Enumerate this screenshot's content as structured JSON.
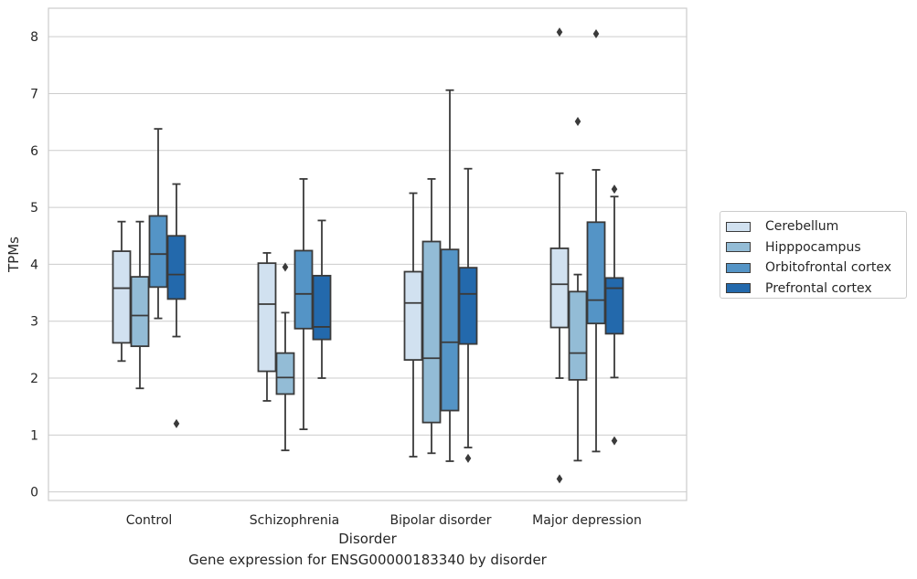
{
  "chart_data": {
    "type": "box",
    "title": "",
    "caption": "Gene expression for ENSG00000183340 by disorder",
    "xlabel": "Disorder",
    "ylabel": "TPMs",
    "ylim": [
      -0.15,
      8.5
    ],
    "yticks": [
      0,
      1,
      2,
      3,
      4,
      5,
      6,
      7,
      8
    ],
    "grid": "horizontal",
    "legend_position": "right",
    "categories": [
      "Control",
      "Schizophrenia",
      "Bipolar disorder",
      "Major depression"
    ],
    "series": [
      {
        "name": "Cerebellum",
        "color": "#d1e1f0",
        "boxes": [
          {
            "whislo": 2.3,
            "q1": 2.62,
            "med": 3.58,
            "q3": 4.23,
            "whishi": 4.75,
            "fliers": []
          },
          {
            "whislo": 1.6,
            "q1": 2.12,
            "med": 3.3,
            "q3": 4.02,
            "whishi": 4.2,
            "fliers": []
          },
          {
            "whislo": 0.62,
            "q1": 2.32,
            "med": 3.32,
            "q3": 3.87,
            "whishi": 5.25,
            "fliers": []
          },
          {
            "whislo": 2.0,
            "q1": 2.89,
            "med": 3.65,
            "q3": 4.28,
            "whishi": 5.6,
            "fliers": [
              8.08,
              0.23
            ]
          }
        ]
      },
      {
        "name": "Hipppocampus",
        "color": "#93bcd6",
        "boxes": [
          {
            "whislo": 1.82,
            "q1": 2.56,
            "med": 3.1,
            "q3": 3.78,
            "whishi": 4.75,
            "fliers": []
          },
          {
            "whislo": 0.73,
            "q1": 1.72,
            "med": 2.01,
            "q3": 2.44,
            "whishi": 3.15,
            "fliers": [
              3.95
            ]
          },
          {
            "whislo": 0.68,
            "q1": 1.22,
            "med": 2.35,
            "q3": 4.4,
            "whishi": 5.5,
            "fliers": []
          },
          {
            "whislo": 0.55,
            "q1": 1.97,
            "med": 2.44,
            "q3": 3.52,
            "whishi": 3.82,
            "fliers": [
              6.51
            ]
          }
        ]
      },
      {
        "name": "Orbitofrontal cortex",
        "color": "#5494c6",
        "boxes": [
          {
            "whislo": 3.05,
            "q1": 3.6,
            "med": 4.18,
            "q3": 4.85,
            "whishi": 6.38,
            "fliers": []
          },
          {
            "whislo": 1.1,
            "q1": 2.87,
            "med": 3.48,
            "q3": 4.24,
            "whishi": 5.5,
            "fliers": []
          },
          {
            "whislo": 0.54,
            "q1": 1.43,
            "med": 2.63,
            "q3": 4.26,
            "whishi": 7.06,
            "fliers": []
          },
          {
            "whislo": 0.71,
            "q1": 2.96,
            "med": 3.37,
            "q3": 4.74,
            "whishi": 5.66,
            "fliers": [
              8.05
            ]
          }
        ]
      },
      {
        "name": "Prefrontal cortex",
        "color": "#2369ac",
        "boxes": [
          {
            "whislo": 2.73,
            "q1": 3.39,
            "med": 3.82,
            "q3": 4.5,
            "whishi": 5.41,
            "fliers": [
              1.2
            ]
          },
          {
            "whislo": 2.0,
            "q1": 2.68,
            "med": 2.9,
            "q3": 3.8,
            "whishi": 4.77,
            "fliers": []
          },
          {
            "whislo": 0.78,
            "q1": 2.6,
            "med": 3.48,
            "q3": 3.94,
            "whishi": 5.68,
            "fliers": [
              0.59
            ]
          },
          {
            "whislo": 2.01,
            "q1": 2.78,
            "med": 3.58,
            "q3": 3.76,
            "whishi": 5.19,
            "fliers": [
              5.32,
              0.9
            ]
          }
        ]
      }
    ]
  }
}
